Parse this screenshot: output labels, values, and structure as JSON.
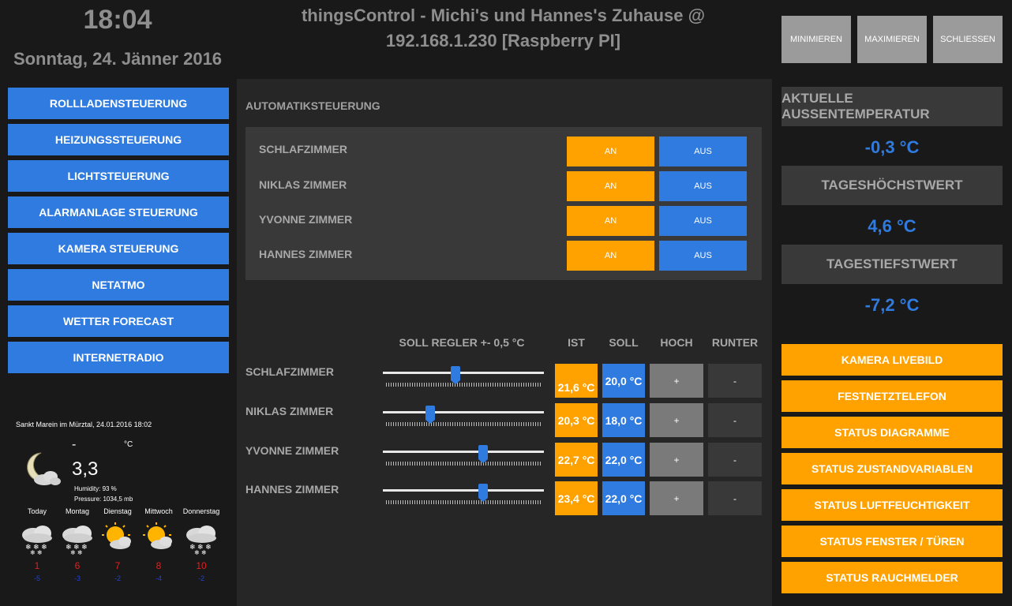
{
  "header": {
    "time": "18:04",
    "date": "Sonntag, 24. Jänner 2016",
    "title": "thingsControl - Michi's und Hannes's Zuhause @ 192.168.1.230 [Raspberry PI]",
    "buttons": [
      "MINIMIEREN",
      "MAXIMIEREN",
      "SCHLIESSEN"
    ]
  },
  "nav": {
    "items": [
      "ROLLLADENSTEUERUNG",
      "HEIZUNGSSTEUERUNG",
      "LICHTSTEUERUNG",
      "ALARMANLAGE STEUERUNG",
      "KAMERA STEUERUNG",
      "NETATMO",
      "WETTER FORECAST",
      "INTERNETRADIO"
    ]
  },
  "weather": {
    "location": "Sankt Marein im Mürztal, 24.01.2016 18:02",
    "dash": "-",
    "unit": "°C",
    "temperature": "3,3",
    "humidity": "Humidity:  93 %",
    "pressure": "Pressure:  1034,5 mb",
    "forecast": [
      {
        "day": "Today",
        "icon": "snow-cloud-icon",
        "high": "1",
        "low": "-5"
      },
      {
        "day": "Montag",
        "icon": "snow-cloud-icon",
        "high": "6",
        "low": "-3"
      },
      {
        "day": "Dienstag",
        "icon": "sun-cloud-icon",
        "high": "7",
        "low": "-2"
      },
      {
        "day": "Mittwoch",
        "icon": "sun-cloud-icon",
        "high": "8",
        "low": "-4"
      },
      {
        "day": "Donnerstag",
        "icon": "snow-cloud-icon",
        "high": "10",
        "low": "-2"
      }
    ]
  },
  "automatik": {
    "title": "AUTOMATIKSTEUERUNG",
    "on_label": "AN",
    "off_label": "AUS",
    "rooms": [
      "SCHLAFZIMMER",
      "NIKLAS ZIMMER",
      "YVONNE ZIMMER",
      "HANNES ZIMMER"
    ]
  },
  "regler": {
    "headers": {
      "soll_regler": "SOLL REGLER +- 0,5 °C",
      "ist": "IST",
      "soll": "SOLL",
      "hoch": "HOCH",
      "runter": "RUNTER"
    },
    "plus": "+",
    "minus": "-",
    "rows": [
      {
        "room": "SCHLAFZIMMER",
        "slider_fraction": 0.45,
        "ist": "21,6 °C",
        "soll": "20,0 °C"
      },
      {
        "room": "NIKLAS ZIMMER",
        "slider_fraction": 0.28,
        "ist": "20,3 °C",
        "soll": "18,0 °C"
      },
      {
        "room": "YVONNE ZIMMER",
        "slider_fraction": 0.63,
        "ist": "22,7 °C",
        "soll": "22,0 °C"
      },
      {
        "room": "HANNES ZIMMER",
        "slider_fraction": 0.63,
        "ist": "23,4 °C",
        "soll": "22,0 °C"
      }
    ]
  },
  "temps": {
    "current_label": "AKTUELLE AUSSENTEMPERATUR",
    "current_value": "-0,3 °C",
    "max_label": "TAGESHÖCHSTWERT",
    "max_value": "4,6 °C",
    "min_label": "TAGESTIEFSTWERT",
    "min_value": "-7,2 °C"
  },
  "status_buttons": [
    "KAMERA LIVEBILD",
    "FESTNETZTELEFON",
    "STATUS DIAGRAMME",
    "STATUS ZUSTANDVARIABLEN",
    "STATUS LUFTFEUCHTIGKEIT",
    "STATUS FENSTER / TÜREN",
    "STATUS RAUCHMELDER"
  ],
  "colors": {
    "blue": "#2f7be0",
    "orange": "#ffa200",
    "gray_button": "#9b9b9b"
  }
}
